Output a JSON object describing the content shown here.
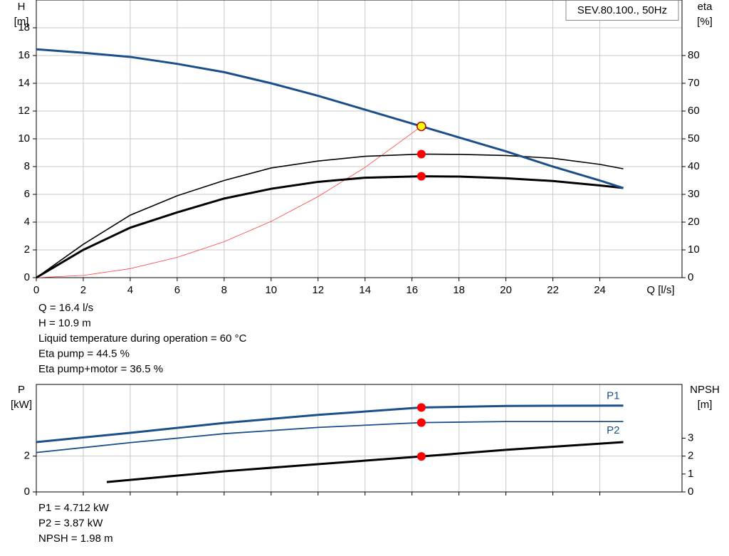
{
  "chart_data": [
    {
      "type": "line",
      "title": "SEV.80.100., 50Hz",
      "x_label": "Q [l/s]",
      "y_label": [
        "H",
        "[m]"
      ],
      "y2_label": [
        "eta",
        "[%]"
      ],
      "xlim": [
        0,
        27.5
      ],
      "xticks": [
        0,
        2,
        4,
        6,
        8,
        10,
        12,
        14,
        16,
        18,
        20,
        22,
        24
      ],
      "ylim": [
        0,
        20
      ],
      "yticks": [
        0,
        2,
        4,
        6,
        8,
        10,
        12,
        14,
        16,
        18
      ],
      "y2lim": [
        0,
        100
      ],
      "y2ticks": [
        0,
        10,
        20,
        30,
        40,
        50,
        60,
        70,
        80
      ],
      "grid": true,
      "operating_point_x": 16.4,
      "series": [
        {
          "color": "#ff4040",
          "width": 0.8,
          "x": [
            0,
            2,
            4,
            6,
            8,
            10,
            12,
            14,
            16.4
          ],
          "values": [
            0,
            0.16,
            0.65,
            1.46,
            2.59,
            4.05,
            5.84,
            7.94,
            10.9
          ]
        },
        {
          "color": "#000000",
          "width": 1.6,
          "axis": "y2",
          "marker_color": "#ff0000",
          "x": [
            0,
            2,
            4,
            6,
            8,
            10,
            12,
            14,
            16.4,
            18,
            20,
            22,
            24,
            25
          ],
          "values": [
            0,
            12,
            22.5,
            29.5,
            35,
            39.5,
            42,
            43.7,
            44.5,
            44.4,
            44,
            43,
            40.8,
            39.2
          ]
        },
        {
          "color": "#000000",
          "width": 3,
          "axis": "y2",
          "marker_color": "#ff0000",
          "x": [
            0,
            2,
            4,
            6,
            8,
            10,
            12,
            14,
            16.4,
            18,
            20,
            22,
            24,
            25
          ],
          "values": [
            0,
            10,
            18,
            23.5,
            28.5,
            32,
            34.5,
            36,
            36.5,
            36.4,
            35.8,
            34.8,
            33.2,
            32.3
          ]
        },
        {
          "color": "#1a4f8a",
          "width": 3,
          "marker_color": "#ffff00",
          "x": [
            0,
            2,
            4,
            6,
            8,
            10,
            12,
            14,
            16.4,
            18,
            20,
            22,
            24,
            25
          ],
          "values": [
            16.45,
            16.2,
            15.9,
            15.4,
            14.8,
            14.0,
            13.1,
            12.1,
            10.9,
            10.1,
            9.1,
            8.0,
            7.0,
            6.45
          ]
        }
      ],
      "notes": [
        "Q = 16.4 l/s",
        "H = 10.9 m",
        "Liquid temperature during operation = 60 °C",
        "Eta pump = 44.5 %",
        "Eta pump+motor = 36.5 %"
      ]
    },
    {
      "type": "line",
      "y_label": [
        "P",
        "[kW]"
      ],
      "y2_label": [
        "NPSH",
        "[m]"
      ],
      "xlim": [
        0,
        27.5
      ],
      "xticks": [
        0,
        2,
        4,
        6,
        8,
        10,
        12,
        14,
        16,
        18,
        20,
        22,
        24
      ],
      "ylim": [
        0,
        6
      ],
      "yticks": [
        0,
        2
      ],
      "y2lim": [
        0,
        6
      ],
      "y2ticks": [
        0,
        1,
        2,
        3
      ],
      "grid": true,
      "operating_point_x": 16.4,
      "series": [
        {
          "name": "P1",
          "color": "#1a4f8a",
          "width": 3,
          "marker_color": "#ff0000",
          "x": [
            0,
            4,
            8,
            12,
            16.4,
            20,
            25
          ],
          "values": [
            2.78,
            3.3,
            3.85,
            4.3,
            4.712,
            4.8,
            4.82
          ]
        },
        {
          "name": "P2",
          "color": "#1a4f8a",
          "width": 1.8,
          "marker_color": "#ff0000",
          "x": [
            0,
            4,
            8,
            12,
            16.4,
            20,
            25
          ],
          "values": [
            2.2,
            2.75,
            3.25,
            3.6,
            3.87,
            3.93,
            3.93
          ]
        },
        {
          "color": "#000000",
          "width": 3,
          "axis": "y2",
          "marker_color": "#ff0000",
          "x": [
            3,
            8,
            12,
            16.4,
            20,
            25
          ],
          "values": [
            0.55,
            1.15,
            1.55,
            1.98,
            2.35,
            2.78
          ]
        }
      ],
      "notes": [
        "P1 = 4.712 kW",
        "P2 = 3.87 kW",
        "NPSH = 1.98 m"
      ]
    }
  ]
}
